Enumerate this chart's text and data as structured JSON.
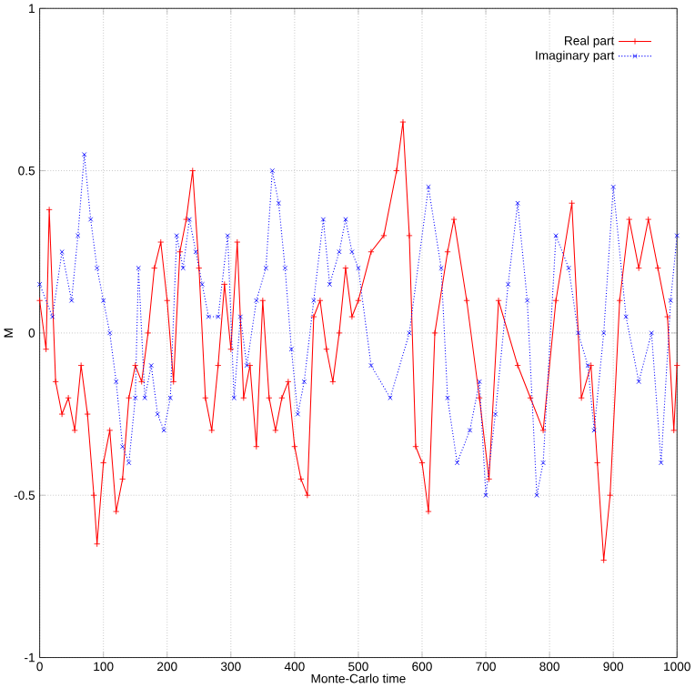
{
  "chart_data": {
    "type": "line",
    "xlabel": "Monte-Carlo time",
    "ylabel": "M",
    "xlim": [
      0,
      1000
    ],
    "ylim": [
      -1,
      1
    ],
    "xticks": [
      0,
      100,
      200,
      300,
      400,
      500,
      600,
      700,
      800,
      900,
      1000
    ],
    "yticks": [
      -1,
      -0.5,
      0,
      0.5,
      1
    ],
    "grid": true,
    "legend": "top right",
    "series": [
      {
        "name": "Real part",
        "color": "#ff0000",
        "marker": "plus",
        "line_style": "solid",
        "x": [
          0,
          10,
          15,
          25,
          35,
          45,
          55,
          65,
          75,
          85,
          90,
          100,
          110,
          120,
          130,
          140,
          150,
          160,
          170,
          180,
          190,
          200,
          210,
          220,
          230,
          240,
          250,
          260,
          270,
          280,
          290,
          300,
          310,
          320,
          330,
          340,
          350,
          360,
          370,
          380,
          390,
          400,
          410,
          420,
          430,
          440,
          450,
          460,
          470,
          480,
          490,
          500,
          520,
          540,
          560,
          570,
          580,
          590,
          600,
          610,
          620,
          640,
          650,
          670,
          690,
          705,
          720,
          750,
          770,
          790,
          810,
          835,
          850,
          865,
          875,
          885,
          895,
          910,
          925,
          940,
          955,
          970,
          985,
          995,
          1000
        ],
        "values": [
          0.1,
          -0.05,
          0.38,
          -0.15,
          -0.25,
          -0.2,
          -0.3,
          -0.1,
          -0.25,
          -0.5,
          -0.65,
          -0.4,
          -0.3,
          -0.55,
          -0.45,
          -0.2,
          -0.1,
          -0.15,
          0.0,
          0.2,
          0.28,
          0.1,
          -0.15,
          0.25,
          0.35,
          0.5,
          0.2,
          -0.2,
          -0.3,
          -0.1,
          0.15,
          -0.05,
          0.28,
          -0.2,
          -0.1,
          -0.35,
          0.1,
          -0.2,
          -0.3,
          -0.2,
          -0.15,
          -0.35,
          -0.45,
          -0.5,
          0.05,
          0.1,
          -0.05,
          -0.15,
          0.0,
          0.2,
          0.05,
          0.1,
          0.25,
          0.3,
          0.5,
          0.65,
          0.3,
          -0.35,
          -0.4,
          -0.55,
          0.0,
          0.25,
          0.35,
          0.1,
          -0.2,
          -0.45,
          0.1,
          -0.1,
          -0.2,
          -0.3,
          0.1,
          0.4,
          -0.2,
          -0.1,
          -0.4,
          -0.7,
          -0.5,
          0.1,
          0.35,
          0.2,
          0.35,
          0.2,
          0.05,
          -0.3,
          -0.1
        ]
      },
      {
        "name": "Imaginary part",
        "color": "#0000ff",
        "marker": "cross",
        "line_style": "dotted",
        "x": [
          0,
          20,
          35,
          50,
          60,
          70,
          80,
          90,
          100,
          110,
          120,
          130,
          140,
          150,
          155,
          165,
          175,
          185,
          195,
          205,
          215,
          225,
          235,
          245,
          255,
          265,
          280,
          295,
          305,
          315,
          325,
          340,
          355,
          365,
          375,
          385,
          395,
          405,
          415,
          430,
          445,
          455,
          470,
          480,
          490,
          500,
          520,
          550,
          580,
          610,
          630,
          640,
          655,
          675,
          690,
          700,
          715,
          735,
          750,
          765,
          780,
          790,
          810,
          830,
          845,
          860,
          870,
          885,
          900,
          920,
          940,
          960,
          975,
          990,
          1000
        ],
        "values": [
          0.15,
          0.05,
          0.25,
          0.1,
          0.3,
          0.55,
          0.35,
          0.2,
          0.1,
          0.0,
          -0.15,
          -0.35,
          -0.4,
          -0.2,
          0.2,
          -0.2,
          -0.1,
          -0.25,
          -0.3,
          -0.2,
          0.3,
          0.2,
          0.35,
          0.25,
          0.15,
          0.05,
          0.05,
          0.3,
          -0.2,
          0.05,
          -0.1,
          0.1,
          0.2,
          0.5,
          0.4,
          0.2,
          -0.05,
          -0.25,
          -0.15,
          0.1,
          0.35,
          0.15,
          0.25,
          0.35,
          0.25,
          0.2,
          -0.1,
          -0.2,
          0.0,
          0.45,
          0.2,
          -0.2,
          -0.4,
          -0.3,
          -0.15,
          -0.5,
          -0.25,
          0.15,
          0.4,
          0.1,
          -0.5,
          -0.4,
          0.3,
          0.2,
          0.0,
          -0.1,
          -0.3,
          0.0,
          0.45,
          0.05,
          -0.15,
          0.0,
          -0.4,
          0.1,
          0.3
        ]
      }
    ]
  }
}
